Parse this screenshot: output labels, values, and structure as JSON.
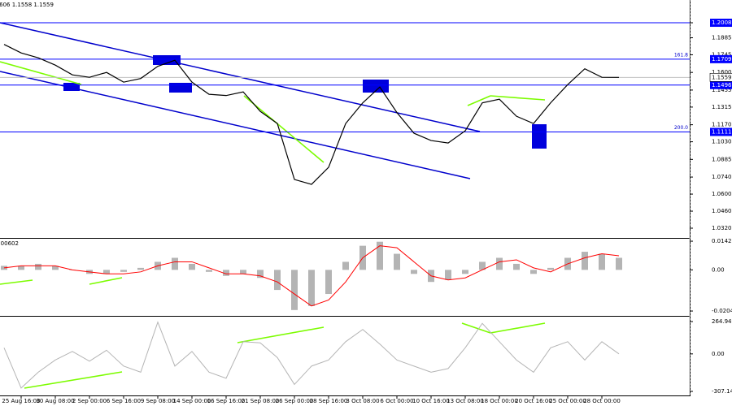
{
  "chart_data": [
    {
      "type": "line",
      "header": "1.1606 1.1558 1.1559",
      "color": "#000000",
      "categories": [
        null,
        "25 Aug 16:00",
        null,
        "30 Aug 08:00",
        null,
        "2 Sep 00:00",
        null,
        "6 Sep 16:00",
        null,
        "9 Sep 08:00",
        null,
        "14 Sep 00:00",
        null,
        "16 Sep 16:00",
        null,
        "21 Sep 08:00",
        null,
        "26 Sep 00:00",
        null,
        "28 Sep 16:00",
        null,
        "3 Oct 08:00",
        null,
        "6 Oct 00:00",
        null,
        "10 Oct 16:00",
        null,
        "13 Oct 08:00",
        null,
        "18 Oct 00:00",
        null,
        "20 Oct 16:00",
        null,
        "25 Oct 00:00",
        null,
        "28 Oct 00:00",
        null
      ],
      "values": [
        1.183,
        1.176,
        1.172,
        1.166,
        1.158,
        1.156,
        1.16,
        1.152,
        1.155,
        1.165,
        1.17,
        1.152,
        1.142,
        1.141,
        1.144,
        1.128,
        1.118,
        1.072,
        1.068,
        1.082,
        1.118,
        1.135,
        1.148,
        1.127,
        1.11,
        1.104,
        1.102,
        1.112,
        1.135,
        1.138,
        1.124,
        1.118,
        1.135,
        1.15,
        1.163,
        1.156,
        1.1559
      ],
      "ylim": [
        1.024,
        1.2195
      ],
      "yticks": [
        {
          "value": 1.2008,
          "label": "1.2008"
        },
        {
          "value": 1.1885,
          "label": "1.1885"
        },
        {
          "value": 1.1745,
          "label": "1.1745"
        },
        {
          "value": 1.16,
          "label": "1.1600"
        },
        {
          "value": 1.1455,
          "label": "1.1455"
        },
        {
          "value": 1.1315,
          "label": "1.1315"
        },
        {
          "value": 1.117,
          "label": "1.1170"
        },
        {
          "value": 1.103,
          "label": "1.1030"
        },
        {
          "value": 1.0885,
          "label": "1.0885"
        },
        {
          "value": 1.074,
          "label": "1.0740"
        },
        {
          "value": 1.06,
          "label": "1.0600"
        },
        {
          "value": 1.046,
          "label": "1.0460"
        },
        {
          "value": 1.032,
          "label": "1.0320"
        }
      ],
      "levels": [
        {
          "value": 1.2008,
          "label": "1.2008"
        },
        {
          "value": 1.1709,
          "label": "1.1709",
          "note": "161.8"
        },
        {
          "value": 1.1496,
          "label": "1.1496"
        },
        {
          "value": 1.1111,
          "label": "1.1111",
          "note": "200.0"
        }
      ],
      "level_color": "#0000ff",
      "last": {
        "value": 1.1559,
        "label": "1.1559"
      }
    },
    {
      "type": "bar",
      "header": "0.00602",
      "color": "#b4b4b4",
      "line_color": "#ff0000",
      "values": [
        0.002,
        0.002,
        0.003,
        0.002,
        0.0,
        -0.002,
        -0.002,
        -0.001,
        0.001,
        0.004,
        0.006,
        0.003,
        -0.001,
        -0.003,
        -0.002,
        -0.004,
        -0.01,
        -0.02,
        -0.018,
        -0.012,
        0.004,
        0.012,
        0.014,
        0.008,
        -0.002,
        -0.006,
        -0.005,
        -0.002,
        0.004,
        0.006,
        0.003,
        -0.002,
        0.001,
        0.006,
        0.009,
        0.008,
        0.006
      ],
      "line_values": [
        0.001,
        0.002,
        0.002,
        0.002,
        0.0,
        -0.001,
        -0.002,
        -0.002,
        -0.001,
        0.002,
        0.004,
        0.004,
        0.001,
        -0.002,
        -0.002,
        -0.003,
        -0.006,
        -0.012,
        -0.018,
        -0.015,
        -0.006,
        0.006,
        0.012,
        0.011,
        0.004,
        -0.003,
        -0.005,
        -0.004,
        0.0,
        0.004,
        0.005,
        0.001,
        -0.001,
        0.003,
        0.006,
        0.008,
        0.007
      ],
      "ylim": [
        -0.0229,
        0.0155
      ],
      "yticks": [
        0.01427,
        {
          "value": 0,
          "label": "0.00"
        },
        -0.02049
      ]
    },
    {
      "type": "line",
      "color": "#b4b4b4",
      "values": [
        50,
        -280,
        -150,
        -50,
        20,
        -60,
        30,
        -100,
        -150,
        260,
        -100,
        20,
        -150,
        -200,
        100,
        90,
        -30,
        -250,
        -100,
        -50,
        100,
        200,
        80,
        -50,
        -100,
        -150,
        -120,
        50,
        250,
        100,
        -50,
        -150,
        50,
        100,
        -50,
        100,
        0
      ],
      "ylim": [
        -347.05,
        304.86
      ],
      "yticks": [
        264.9492,
        {
          "value": 0,
          "label": "0.00"
        },
        -307.1427
      ]
    }
  ]
}
